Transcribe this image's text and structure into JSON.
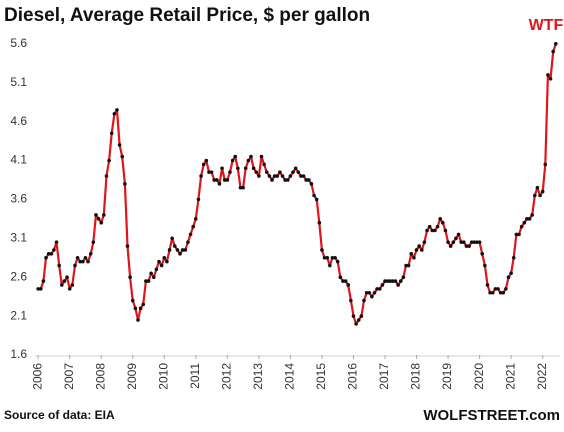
{
  "chart_data": {
    "type": "line",
    "title": "Diesel, Average Retail Price, $ per gallon",
    "annotation": "WTF",
    "source": "Source of data: EIA",
    "brand": "WOLFSTREET.com",
    "color": "#e0151b",
    "marker_color": "#111111",
    "grid": false,
    "xlim": [
      2005.9,
      2022.55
    ],
    "xticks": [
      2006,
      2007,
      2008,
      2009,
      2010,
      2011,
      2012,
      2013,
      2014,
      2015,
      2016,
      2017,
      2018,
      2019,
      2020,
      2021,
      2022
    ],
    "ylim": [
      1.6,
      5.7
    ],
    "yticks": [
      1.6,
      2.1,
      2.6,
      3.1,
      3.6,
      4.1,
      4.6,
      5.1,
      5.6
    ],
    "x": [
      2006,
      2006.083,
      2006.167,
      2006.25,
      2006.333,
      2006.417,
      2006.5,
      2006.583,
      2006.667,
      2006.75,
      2006.833,
      2006.917,
      2007,
      2007.083,
      2007.167,
      2007.25,
      2007.333,
      2007.417,
      2007.5,
      2007.583,
      2007.667,
      2007.75,
      2007.833,
      2007.917,
      2008,
      2008.083,
      2008.167,
      2008.25,
      2008.333,
      2008.417,
      2008.5,
      2008.583,
      2008.667,
      2008.75,
      2008.833,
      2008.917,
      2009,
      2009.083,
      2009.167,
      2009.25,
      2009.333,
      2009.417,
      2009.5,
      2009.583,
      2009.667,
      2009.75,
      2009.833,
      2009.917,
      2010,
      2010.083,
      2010.167,
      2010.25,
      2010.333,
      2010.417,
      2010.5,
      2010.583,
      2010.667,
      2010.75,
      2010.833,
      2010.917,
      2011,
      2011.083,
      2011.167,
      2011.25,
      2011.333,
      2011.417,
      2011.5,
      2011.583,
      2011.667,
      2011.75,
      2011.833,
      2011.917,
      2012,
      2012.083,
      2012.167,
      2012.25,
      2012.333,
      2012.417,
      2012.5,
      2012.583,
      2012.667,
      2012.75,
      2012.833,
      2012.917,
      2013,
      2013.083,
      2013.167,
      2013.25,
      2013.333,
      2013.417,
      2013.5,
      2013.583,
      2013.667,
      2013.75,
      2013.833,
      2013.917,
      2014,
      2014.083,
      2014.167,
      2014.25,
      2014.333,
      2014.417,
      2014.5,
      2014.583,
      2014.667,
      2014.75,
      2014.833,
      2014.917,
      2015,
      2015.083,
      2015.167,
      2015.25,
      2015.333,
      2015.417,
      2015.5,
      2015.583,
      2015.667,
      2015.75,
      2015.833,
      2015.917,
      2016,
      2016.083,
      2016.167,
      2016.25,
      2016.333,
      2016.417,
      2016.5,
      2016.583,
      2016.667,
      2016.75,
      2016.833,
      2016.917,
      2017,
      2017.083,
      2017.167,
      2017.25,
      2017.333,
      2017.417,
      2017.5,
      2017.583,
      2017.667,
      2017.75,
      2017.833,
      2017.917,
      2018,
      2018.083,
      2018.167,
      2018.25,
      2018.333,
      2018.417,
      2018.5,
      2018.583,
      2018.667,
      2018.75,
      2018.833,
      2018.917,
      2019,
      2019.083,
      2019.167,
      2019.25,
      2019.333,
      2019.417,
      2019.5,
      2019.583,
      2019.667,
      2019.75,
      2019.833,
      2019.917,
      2020,
      2020.083,
      2020.167,
      2020.25,
      2020.333,
      2020.417,
      2020.5,
      2020.583,
      2020.667,
      2020.75,
      2020.833,
      2020.917,
      2021,
      2021.083,
      2021.167,
      2021.25,
      2021.333,
      2021.417,
      2021.5,
      2021.583,
      2021.667,
      2021.75,
      2021.833,
      2021.917,
      2022,
      2022.083,
      2022.167,
      2022.25,
      2022.333,
      2022.417
    ],
    "values": [
      2.45,
      2.45,
      2.55,
      2.85,
      2.9,
      2.9,
      2.95,
      3.05,
      2.75,
      2.5,
      2.55,
      2.6,
      2.45,
      2.5,
      2.75,
      2.85,
      2.8,
      2.8,
      2.85,
      2.8,
      2.9,
      3.05,
      3.4,
      3.35,
      3.3,
      3.4,
      3.9,
      4.1,
      4.45,
      4.7,
      4.75,
      4.3,
      4.15,
      3.8,
      3.0,
      2.6,
      2.3,
      2.2,
      2.05,
      2.2,
      2.25,
      2.55,
      2.55,
      2.65,
      2.6,
      2.7,
      2.8,
      2.75,
      2.85,
      2.8,
      2.95,
      3.1,
      3.0,
      2.95,
      2.9,
      2.95,
      2.95,
      3.05,
      3.15,
      3.25,
      3.35,
      3.6,
      3.9,
      4.05,
      4.1,
      3.95,
      3.95,
      3.85,
      3.85,
      3.8,
      4.0,
      3.85,
      3.85,
      3.95,
      4.1,
      4.15,
      4.0,
      3.75,
      3.75,
      4.0,
      4.1,
      4.15,
      4.0,
      3.95,
      3.9,
      4.15,
      4.05,
      3.95,
      3.9,
      3.85,
      3.9,
      3.9,
      3.95,
      3.9,
      3.85,
      3.85,
      3.9,
      3.95,
      4.0,
      3.95,
      3.9,
      3.9,
      3.85,
      3.85,
      3.8,
      3.65,
      3.6,
      3.3,
      2.95,
      2.85,
      2.85,
      2.75,
      2.85,
      2.85,
      2.8,
      2.6,
      2.55,
      2.55,
      2.5,
      2.3,
      2.1,
      2.0,
      2.05,
      2.1,
      2.3,
      2.4,
      2.4,
      2.35,
      2.4,
      2.45,
      2.45,
      2.5,
      2.55,
      2.55,
      2.55,
      2.55,
      2.55,
      2.5,
      2.55,
      2.6,
      2.75,
      2.75,
      2.9,
      2.85,
      2.95,
      3.0,
      2.95,
      3.05,
      3.2,
      3.25,
      3.2,
      3.2,
      3.25,
      3.35,
      3.3,
      3.2,
      3.05,
      3.0,
      3.05,
      3.1,
      3.15,
      3.05,
      3.05,
      3.0,
      3.0,
      3.05,
      3.05,
      3.05,
      3.05,
      2.9,
      2.75,
      2.5,
      2.4,
      2.4,
      2.45,
      2.45,
      2.4,
      2.4,
      2.45,
      2.6,
      2.65,
      2.85,
      3.15,
      3.15,
      3.25,
      3.3,
      3.35,
      3.35,
      3.4,
      3.65,
      3.75,
      3.65,
      3.7,
      4.05,
      5.2,
      5.15,
      5.5,
      5.6
    ]
  }
}
